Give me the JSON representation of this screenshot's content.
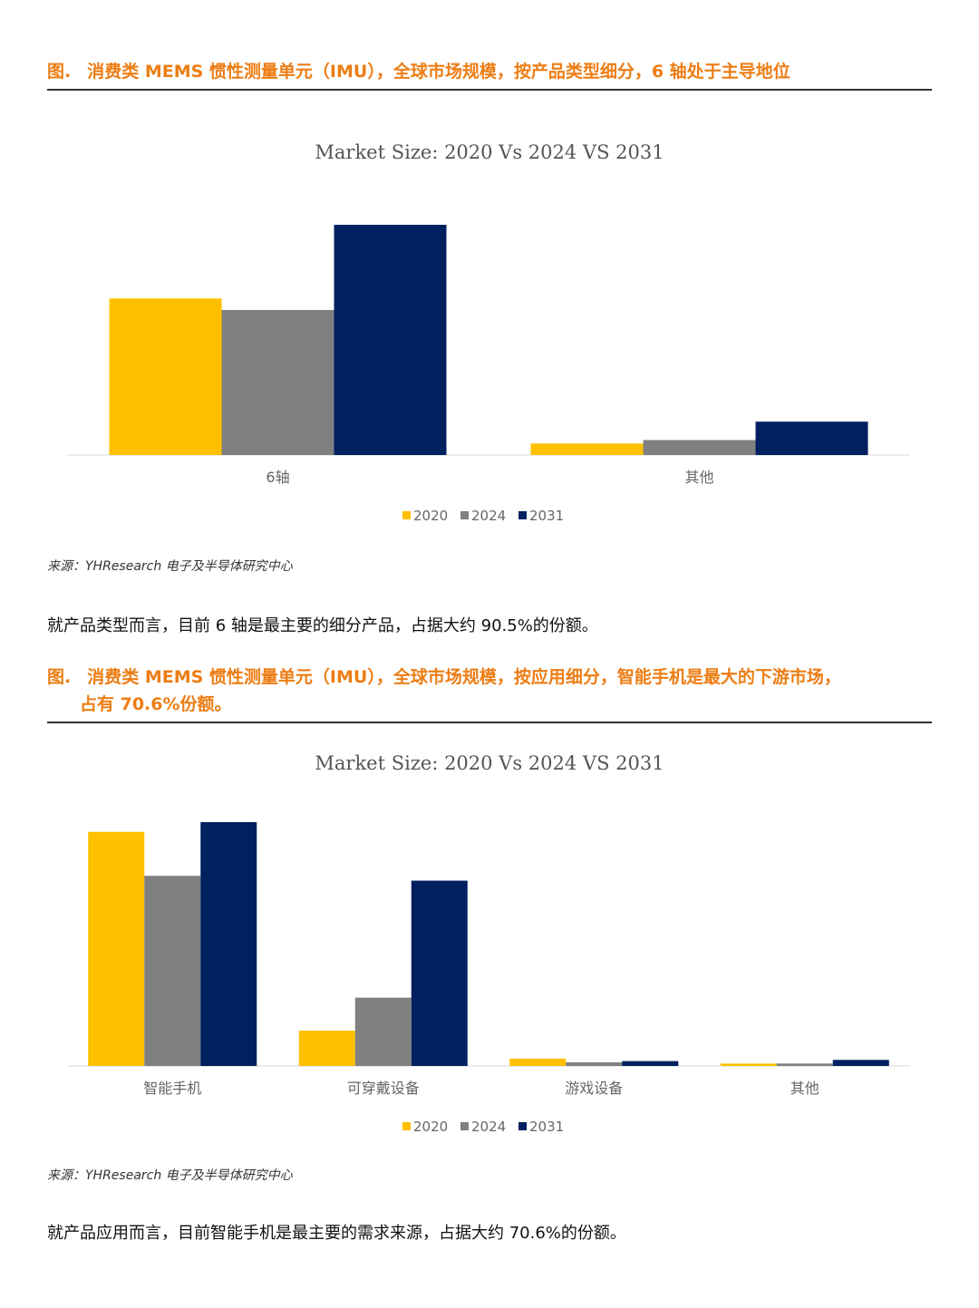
{
  "sections": [
    {
      "caption_tag": "图.",
      "caption_text": "消费类 MEMS 惯性测量单元（IMU），全球市场规模，按产品类型细分，6 轴处于主导地位",
      "caption_cont": "",
      "source": "来源：YHResearch 电子及半导体研究中心",
      "body": "就产品类型而言，目前 6 轴是最主要的细分产品，占据大约 90.5%的份额。"
    },
    {
      "caption_tag": "图.",
      "caption_text": "消费类 MEMS 惯性测量单元（IMU），全球市场规模，按应用细分，智能手机是最大的下游市场，",
      "caption_cont": "占有 70.6%份额。",
      "source": "来源：YHResearch 电子及半导体研究中心",
      "body": "就产品应用而言，目前智能手机是最主要的需求来源，占据大约 70.6%的份额。"
    }
  ],
  "colors": {
    "2020": "#FFC000",
    "2024": "#808080",
    "2031": "#002060",
    "caption": "#ED7D14"
  },
  "chart_data": [
    {
      "type": "bar",
      "title": "Market Size: 2020 Vs 2024 VS 2031",
      "categories": [
        "6轴",
        "其他"
      ],
      "series": [
        {
          "name": "2020",
          "values": [
            68,
            5
          ]
        },
        {
          "name": "2024",
          "values": [
            63,
            6.5
          ]
        },
        {
          "name": "2031",
          "values": [
            100,
            14.5
          ]
        }
      ],
      "ylim": [
        0,
        100
      ],
      "legend": "bottom",
      "grid": false
    },
    {
      "type": "bar",
      "title": "Market Size: 2020 Vs 2024 VS 2031",
      "categories": [
        "智能手机",
        "可穿戴设备",
        "游戏设备",
        "其他"
      ],
      "series": [
        {
          "name": "2020",
          "values": [
            96,
            14.5,
            3,
            1
          ]
        },
        {
          "name": "2024",
          "values": [
            78,
            28,
            1.5,
            1
          ]
        },
        {
          "name": "2031",
          "values": [
            100,
            76,
            2,
            2.5
          ]
        }
      ],
      "ylim": [
        0,
        100
      ],
      "legend": "bottom",
      "grid": false
    }
  ]
}
